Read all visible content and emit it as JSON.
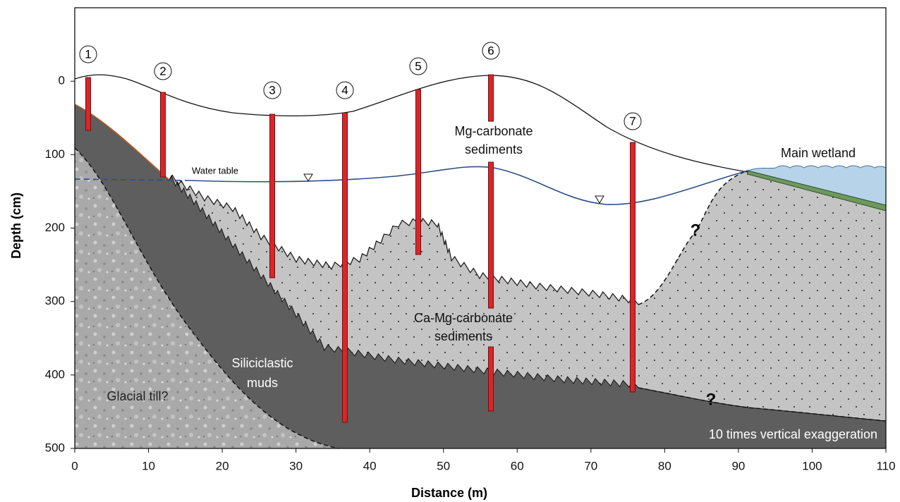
{
  "axes": {
    "xlabel": "Distance (m)",
    "ylabel": "Depth (cm)",
    "xlim": [
      0,
      110
    ],
    "ylim": [
      -100,
      500
    ],
    "xticks": [
      0,
      10,
      20,
      30,
      40,
      50,
      60,
      70,
      80,
      90,
      100,
      110
    ],
    "yticks": [
      0,
      100,
      200,
      300,
      400,
      500
    ]
  },
  "cores": [
    "1",
    "2",
    "3",
    "4",
    "5",
    "6",
    "7"
  ],
  "units": {
    "mg_carbonate": [
      "Mg-carbonate",
      "sediments"
    ],
    "main_wetland": "Main wetland",
    "ca_mg_carbonate": [
      "Ca-Mg-carbonate",
      "sediments"
    ],
    "siliciclastic": [
      "Siliciclastic",
      "muds"
    ],
    "glacial_till": "Glacial till?"
  },
  "water_table": "Water table",
  "uncertain": [
    "?",
    "?"
  ],
  "note": "10 times vertical exaggeration"
}
